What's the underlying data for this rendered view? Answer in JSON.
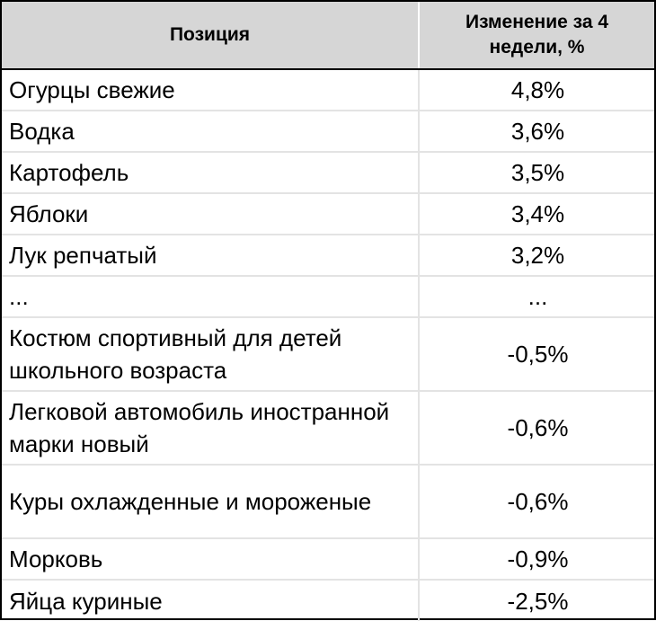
{
  "chart_data": {
    "type": "table",
    "columns": [
      "Позиция",
      "Изменение за 4 недели, %"
    ],
    "rows": [
      {
        "name": "Огурцы свежие",
        "value_label": "4,8%",
        "value": 4.8
      },
      {
        "name": "Водка",
        "value_label": "3,6%",
        "value": 3.6
      },
      {
        "name": "Картофель",
        "value_label": "3,5%",
        "value": 3.5
      },
      {
        "name": "Яблоки",
        "value_label": "3,4%",
        "value": 3.4
      },
      {
        "name": "Лук репчатый",
        "value_label": "3,2%",
        "value": 3.2
      },
      {
        "name": "...",
        "value_label": "...",
        "value": null
      },
      {
        "name": "Костюм спортивный для детей школьного  возраста",
        "value_label": "-0,5%",
        "value": -0.5
      },
      {
        "name": "Легковой автомобиль иностранной марки  новый",
        "value_label": "-0,6%",
        "value": -0.6
      },
      {
        "name": "Куры охлажденные и мороженые",
        "value_label": "-0,6%",
        "value": -0.6
      },
      {
        "name": "Морковь",
        "value_label": "-0,9%",
        "value": -0.9
      },
      {
        "name": "Яйца куриные",
        "value_label": "-2,5%",
        "value": -2.5
      }
    ]
  },
  "colors": {
    "header_bg": "#d6d6d6",
    "border": "#000000",
    "grid": "#e3e3e3",
    "text": "#000000",
    "background": "#ffffff"
  }
}
